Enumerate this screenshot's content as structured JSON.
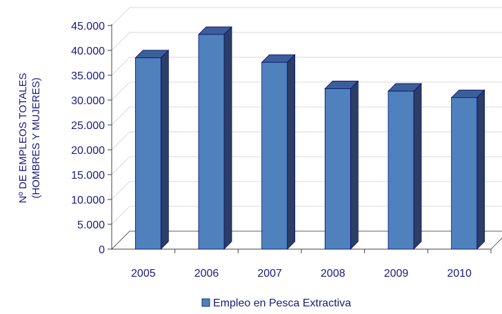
{
  "chart_data": {
    "type": "bar",
    "categories": [
      "2005",
      "2006",
      "2007",
      "2008",
      "2009",
      "2010"
    ],
    "series": [
      {
        "name": "Empleo en Pesca Extractiva",
        "values": [
          38500,
          43200,
          37600,
          32300,
          31800,
          30500
        ],
        "color": "#4F81BD"
      }
    ],
    "ylabel_lines": [
      "Nº DE EMPLEOS TOTALES",
      "(HOMBRES Y MUJERES)"
    ],
    "ylim": [
      0,
      45000
    ],
    "yticks": [
      0,
      5000,
      10000,
      15000,
      20000,
      25000,
      30000,
      35000,
      40000,
      45000
    ],
    "ytick_labels": [
      "0",
      "5.000",
      "10.000",
      "15.000",
      "20.000",
      "25.000",
      "30.000",
      "35.000",
      "40.000",
      "45.000"
    ],
    "grid": true,
    "legend_position": "bottom",
    "style": "3d-column",
    "colors": {
      "bar_front": "#4F81BD",
      "bar_side": "#2B3F66",
      "bar_top": "#3B5F99",
      "bar_outline": "#0A0A6E",
      "text": "#1A1A80",
      "grid": "#D9D9D9"
    }
  }
}
